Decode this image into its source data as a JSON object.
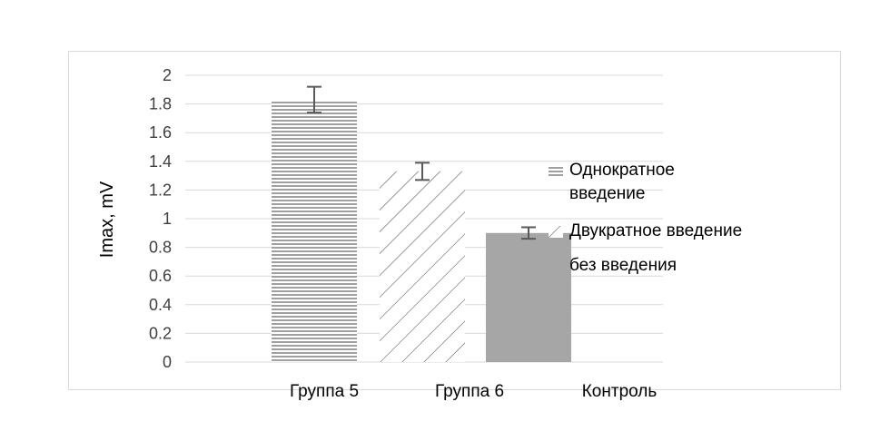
{
  "chart_data": {
    "type": "bar",
    "title": "",
    "xlabel": "",
    "ylabel": "Imax, mV",
    "ylim": [
      0,
      2
    ],
    "yticks": [
      "0",
      "0.2",
      "0.4",
      "0.6",
      "0.8",
      "1",
      "1.2",
      "1.4",
      "1.6",
      "1.8",
      "2"
    ],
    "grid": true,
    "legend_position": "right",
    "categories": [
      "Группа 5",
      "Группа 6",
      "Контроль"
    ],
    "series": [
      {
        "name": "Однократное введение",
        "legend_lines": [
          "Однократное",
          "введение"
        ],
        "pattern": "horizontal-lines",
        "values": [
          1.83,
          null,
          null
        ],
        "error": [
          0.09,
          null,
          null
        ]
      },
      {
        "name": "Двукратное введение",
        "legend_lines": [
          "Двукратное введение"
        ],
        "pattern": "diagonal-lines",
        "values": [
          null,
          1.33,
          null
        ],
        "error": [
          null,
          0.06,
          null
        ]
      },
      {
        "name": "без введения",
        "legend_lines": [
          "без введения"
        ],
        "pattern": "solid",
        "color": "#a6a6a6",
        "values": [
          null,
          null,
          0.9
        ],
        "error": [
          null,
          null,
          0.04
        ]
      }
    ],
    "colors": {
      "gridline": "#d9d9d9",
      "hatch": "#404040",
      "solid_fill": "#a6a6a6",
      "error_bar": "#595959"
    }
  }
}
